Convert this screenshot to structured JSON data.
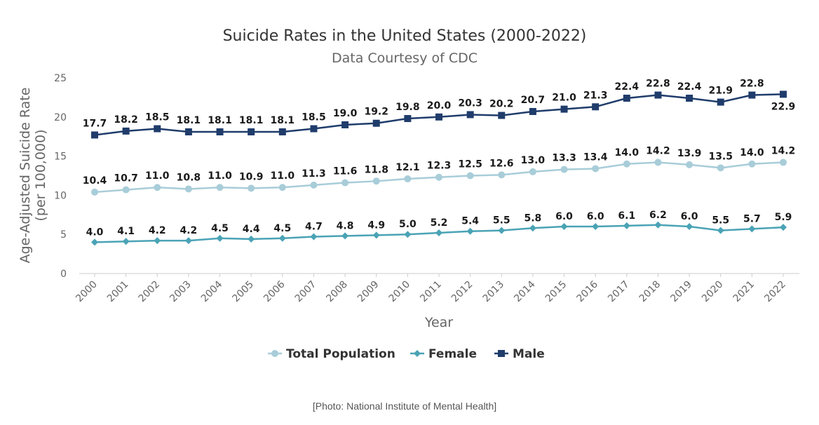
{
  "chart_data": {
    "type": "line",
    "title": "Suicide Rates in the United States (2000-2022)",
    "subtitle": "Data Courtesy of CDC",
    "xlabel": "Year",
    "ylabel": "Age-Adjusted Suicide Rate",
    "ylabel_unit": "(per 100,000)",
    "ylim": [
      0,
      25
    ],
    "yticks": [
      0,
      5,
      10,
      15,
      20,
      25
    ],
    "grid": false,
    "legend_position": "bottom",
    "categories": [
      "2000",
      "2001",
      "2002",
      "2003",
      "2004",
      "2005",
      "2006",
      "2007",
      "2008",
      "2009",
      "2010",
      "2011",
      "2012",
      "2013",
      "2014",
      "2015",
      "2016",
      "2017",
      "2018",
      "2019",
      "2020",
      "2021",
      "2022"
    ],
    "series": [
      {
        "name": "Total Population",
        "color": "#a8cdd9",
        "marker": "circle",
        "values": [
          10.4,
          10.7,
          11.0,
          10.8,
          11.0,
          10.9,
          11.0,
          11.3,
          11.6,
          11.8,
          12.1,
          12.3,
          12.5,
          12.6,
          13.0,
          13.3,
          13.4,
          14.0,
          14.2,
          13.9,
          13.5,
          14.0,
          14.2
        ]
      },
      {
        "name": "Female",
        "color": "#4aa3b5",
        "marker": "diamond",
        "values": [
          4.0,
          4.1,
          4.2,
          4.2,
          4.5,
          4.4,
          4.5,
          4.7,
          4.8,
          4.9,
          5.0,
          5.2,
          5.4,
          5.5,
          5.8,
          6.0,
          6.0,
          6.1,
          6.2,
          6.0,
          5.5,
          5.7,
          5.9
        ]
      },
      {
        "name": "Male",
        "color": "#1f3c6b",
        "marker": "square",
        "values": [
          17.7,
          18.2,
          18.5,
          18.1,
          18.1,
          18.1,
          18.1,
          18.5,
          19.0,
          19.2,
          19.8,
          20.0,
          20.3,
          20.2,
          20.7,
          21.0,
          21.3,
          22.4,
          22.8,
          22.4,
          21.9,
          22.8,
          22.9
        ]
      }
    ]
  },
  "caption": "[Photo: National Institute of Mental Health]"
}
